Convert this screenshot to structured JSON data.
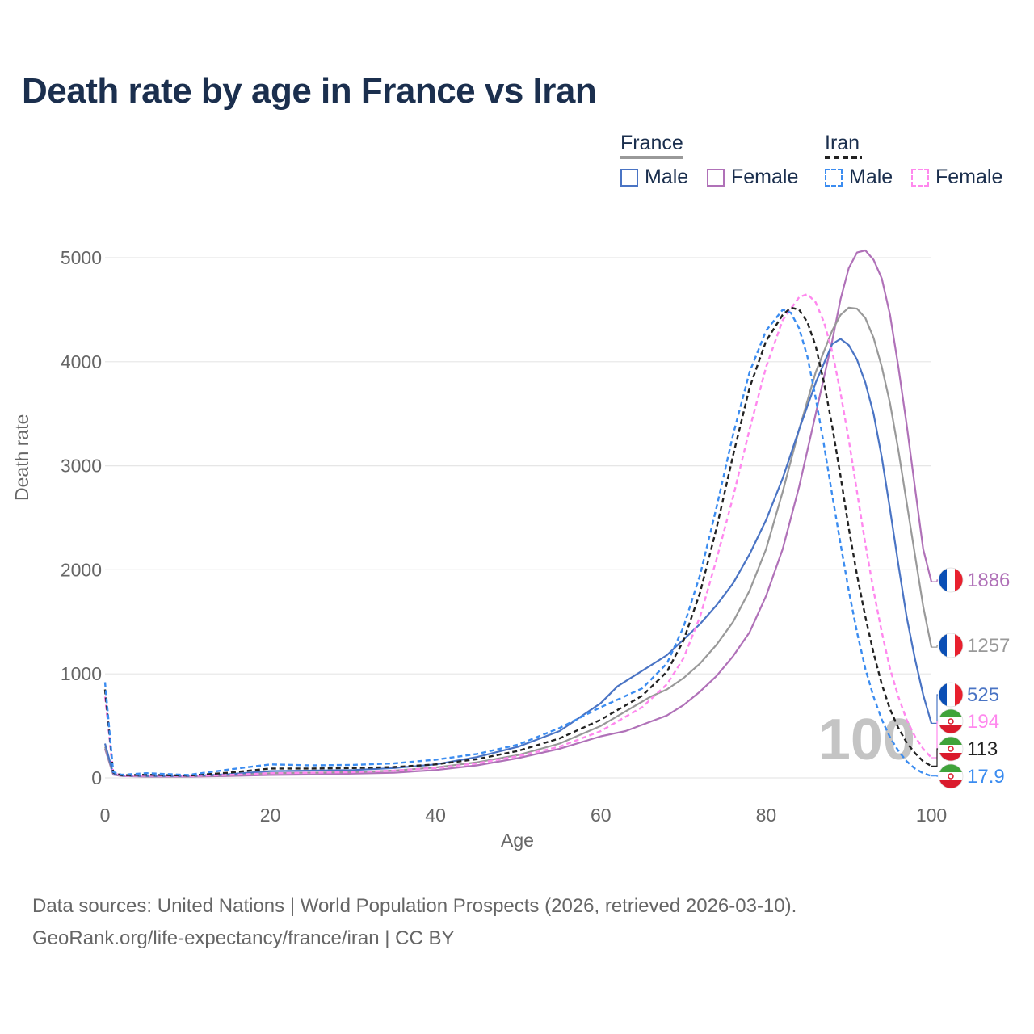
{
  "title": "Death rate by age in France vs Iran",
  "legend": {
    "groups": [
      {
        "name": "France",
        "underline_color": "#999999",
        "underline_style": "solid",
        "items": [
          {
            "label": "Male",
            "color": "#4a74c4",
            "style": "solid"
          },
          {
            "label": "Female",
            "color": "#b071b8",
            "style": "solid"
          }
        ]
      },
      {
        "name": "Iran",
        "underline_color": "#222222",
        "underline_style": "dashed",
        "items": [
          {
            "label": "Male",
            "color": "#3b8cf0",
            "style": "dashed"
          },
          {
            "label": "Female",
            "color": "#ff88ee",
            "style": "dashed"
          }
        ]
      }
    ]
  },
  "watermark": "100",
  "footer": {
    "line1": "Data sources: United Nations | World Population Prospects (2026, retrieved 2026-03-10).",
    "line2": "GeoRank.org/life-expectancy/france/iran | CC BY"
  },
  "chart_data": {
    "type": "line",
    "title": "Death rate by age in France vs Iran",
    "xlabel": "Age",
    "ylabel": "Death rate",
    "xlim": [
      0,
      100
    ],
    "ylim": [
      0,
      5000
    ],
    "xticks": [
      0,
      20,
      40,
      60,
      80,
      100
    ],
    "yticks": [
      0,
      1000,
      2000,
      3000,
      4000,
      5000
    ],
    "grid": true,
    "series": [
      {
        "name": "France Female",
        "country": "France",
        "color": "#b071b8",
        "dash": false,
        "end_label": "1886",
        "points": [
          [
            0,
            280
          ],
          [
            1,
            30
          ],
          [
            2,
            18
          ],
          [
            5,
            12
          ],
          [
            10,
            12
          ],
          [
            15,
            18
          ],
          [
            20,
            28
          ],
          [
            25,
            32
          ],
          [
            30,
            40
          ],
          [
            35,
            50
          ],
          [
            40,
            75
          ],
          [
            45,
            120
          ],
          [
            50,
            190
          ],
          [
            55,
            280
          ],
          [
            60,
            400
          ],
          [
            63,
            450
          ],
          [
            66,
            540
          ],
          [
            68,
            600
          ],
          [
            70,
            700
          ],
          [
            72,
            830
          ],
          [
            74,
            980
          ],
          [
            76,
            1170
          ],
          [
            78,
            1400
          ],
          [
            80,
            1750
          ],
          [
            82,
            2200
          ],
          [
            84,
            2800
          ],
          [
            86,
            3500
          ],
          [
            88,
            4200
          ],
          [
            89,
            4600
          ],
          [
            90,
            4900
          ],
          [
            91,
            5050
          ],
          [
            92,
            5070
          ],
          [
            93,
            4980
          ],
          [
            94,
            4800
          ],
          [
            95,
            4450
          ],
          [
            96,
            3950
          ],
          [
            97,
            3400
          ],
          [
            98,
            2800
          ],
          [
            99,
            2200
          ],
          [
            100,
            1886
          ]
        ]
      },
      {
        "name": "France Both",
        "country": "France",
        "color": "#999999",
        "dash": false,
        "end_label": "1257",
        "points": [
          [
            0,
            300
          ],
          [
            1,
            35
          ],
          [
            2,
            20
          ],
          [
            5,
            15
          ],
          [
            10,
            15
          ],
          [
            15,
            25
          ],
          [
            20,
            45
          ],
          [
            25,
            50
          ],
          [
            30,
            55
          ],
          [
            35,
            70
          ],
          [
            40,
            100
          ],
          [
            45,
            150
          ],
          [
            50,
            220
          ],
          [
            55,
            330
          ],
          [
            60,
            500
          ],
          [
            63,
            640
          ],
          [
            66,
            780
          ],
          [
            68,
            850
          ],
          [
            70,
            960
          ],
          [
            72,
            1100
          ],
          [
            74,
            1280
          ],
          [
            76,
            1500
          ],
          [
            78,
            1800
          ],
          [
            80,
            2200
          ],
          [
            82,
            2750
          ],
          [
            84,
            3350
          ],
          [
            86,
            3900
          ],
          [
            88,
            4300
          ],
          [
            89,
            4450
          ],
          [
            90,
            4520
          ],
          [
            91,
            4510
          ],
          [
            92,
            4420
          ],
          [
            93,
            4230
          ],
          [
            94,
            3950
          ],
          [
            95,
            3600
          ],
          [
            96,
            3150
          ],
          [
            97,
            2650
          ],
          [
            98,
            2150
          ],
          [
            99,
            1650
          ],
          [
            100,
            1257
          ]
        ]
      },
      {
        "name": "France Male",
        "country": "France",
        "color": "#4a74c4",
        "dash": false,
        "end_label": "525",
        "points": [
          [
            0,
            330
          ],
          [
            1,
            40
          ],
          [
            2,
            22
          ],
          [
            5,
            18
          ],
          [
            10,
            18
          ],
          [
            15,
            35
          ],
          [
            20,
            65
          ],
          [
            25,
            70
          ],
          [
            30,
            75
          ],
          [
            35,
            95
          ],
          [
            40,
            130
          ],
          [
            45,
            200
          ],
          [
            50,
            300
          ],
          [
            55,
            450
          ],
          [
            60,
            720
          ],
          [
            62,
            880
          ],
          [
            64,
            980
          ],
          [
            66,
            1080
          ],
          [
            68,
            1180
          ],
          [
            70,
            1330
          ],
          [
            72,
            1480
          ],
          [
            74,
            1660
          ],
          [
            76,
            1870
          ],
          [
            78,
            2150
          ],
          [
            80,
            2480
          ],
          [
            82,
            2880
          ],
          [
            84,
            3350
          ],
          [
            86,
            3800
          ],
          [
            88,
            4170
          ],
          [
            89,
            4220
          ],
          [
            90,
            4160
          ],
          [
            91,
            4020
          ],
          [
            92,
            3800
          ],
          [
            93,
            3500
          ],
          [
            94,
            3080
          ],
          [
            95,
            2580
          ],
          [
            96,
            2050
          ],
          [
            97,
            1550
          ],
          [
            98,
            1150
          ],
          [
            99,
            800
          ],
          [
            100,
            525
          ]
        ]
      },
      {
        "name": "Iran Female",
        "country": "Iran",
        "color": "#ff88ee",
        "dash": true,
        "end_label": "194",
        "points": [
          [
            0,
            780
          ],
          [
            1,
            45
          ],
          [
            2,
            22
          ],
          [
            5,
            20
          ],
          [
            10,
            18
          ],
          [
            15,
            28
          ],
          [
            20,
            45
          ],
          [
            25,
            50
          ],
          [
            30,
            55
          ],
          [
            35,
            70
          ],
          [
            40,
            95
          ],
          [
            45,
            140
          ],
          [
            50,
            210
          ],
          [
            55,
            300
          ],
          [
            60,
            450
          ],
          [
            65,
            680
          ],
          [
            68,
            900
          ],
          [
            70,
            1150
          ],
          [
            72,
            1550
          ],
          [
            74,
            2100
          ],
          [
            76,
            2700
          ],
          [
            78,
            3350
          ],
          [
            80,
            3950
          ],
          [
            82,
            4400
          ],
          [
            84,
            4620
          ],
          [
            85,
            4650
          ],
          [
            86,
            4570
          ],
          [
            87,
            4380
          ],
          [
            88,
            4100
          ],
          [
            89,
            3700
          ],
          [
            90,
            3250
          ],
          [
            91,
            2750
          ],
          [
            92,
            2250
          ],
          [
            93,
            1800
          ],
          [
            94,
            1400
          ],
          [
            95,
            1050
          ],
          [
            96,
            780
          ],
          [
            97,
            560
          ],
          [
            98,
            400
          ],
          [
            99,
            280
          ],
          [
            100,
            194
          ]
        ]
      },
      {
        "name": "Iran Both",
        "country": "Iran",
        "color": "#222222",
        "dash": true,
        "end_label": "113",
        "points": [
          [
            0,
            850
          ],
          [
            1,
            50
          ],
          [
            2,
            25
          ],
          [
            5,
            30
          ],
          [
            10,
            22
          ],
          [
            15,
            50
          ],
          [
            20,
            90
          ],
          [
            25,
            90
          ],
          [
            30,
            95
          ],
          [
            35,
            105
          ],
          [
            40,
            130
          ],
          [
            45,
            180
          ],
          [
            50,
            260
          ],
          [
            55,
            380
          ],
          [
            60,
            560
          ],
          [
            65,
            790
          ],
          [
            68,
            1020
          ],
          [
            70,
            1320
          ],
          [
            72,
            1780
          ],
          [
            74,
            2400
          ],
          [
            76,
            3100
          ],
          [
            78,
            3750
          ],
          [
            80,
            4200
          ],
          [
            82,
            4450
          ],
          [
            83,
            4520
          ],
          [
            84,
            4500
          ],
          [
            85,
            4380
          ],
          [
            86,
            4150
          ],
          [
            87,
            3800
          ],
          [
            88,
            3380
          ],
          [
            89,
            2900
          ],
          [
            90,
            2400
          ],
          [
            91,
            1950
          ],
          [
            92,
            1550
          ],
          [
            93,
            1200
          ],
          [
            94,
            900
          ],
          [
            95,
            660
          ],
          [
            96,
            480
          ],
          [
            97,
            340
          ],
          [
            98,
            240
          ],
          [
            99,
            160
          ],
          [
            100,
            113
          ]
        ]
      },
      {
        "name": "Iran Male",
        "country": "Iran",
        "color": "#3b8cf0",
        "dash": true,
        "end_label": "17.9",
        "points": [
          [
            0,
            920
          ],
          [
            1,
            55
          ],
          [
            2,
            30
          ],
          [
            5,
            45
          ],
          [
            10,
            28
          ],
          [
            15,
            80
          ],
          [
            20,
            130
          ],
          [
            25,
            120
          ],
          [
            30,
            125
          ],
          [
            35,
            140
          ],
          [
            40,
            175
          ],
          [
            45,
            230
          ],
          [
            50,
            320
          ],
          [
            55,
            480
          ],
          [
            60,
            680
          ],
          [
            65,
            860
          ],
          [
            68,
            1100
          ],
          [
            70,
            1450
          ],
          [
            72,
            1950
          ],
          [
            74,
            2600
          ],
          [
            76,
            3300
          ],
          [
            78,
            3900
          ],
          [
            80,
            4300
          ],
          [
            82,
            4500
          ],
          [
            83,
            4470
          ],
          [
            84,
            4320
          ],
          [
            85,
            4050
          ],
          [
            86,
            3650
          ],
          [
            87,
            3200
          ],
          [
            88,
            2720
          ],
          [
            89,
            2250
          ],
          [
            90,
            1800
          ],
          [
            91,
            1400
          ],
          [
            92,
            1050
          ],
          [
            93,
            780
          ],
          [
            94,
            560
          ],
          [
            95,
            390
          ],
          [
            96,
            260
          ],
          [
            97,
            160
          ],
          [
            98,
            90
          ],
          [
            99,
            45
          ],
          [
            100,
            17.9
          ]
        ]
      }
    ]
  }
}
